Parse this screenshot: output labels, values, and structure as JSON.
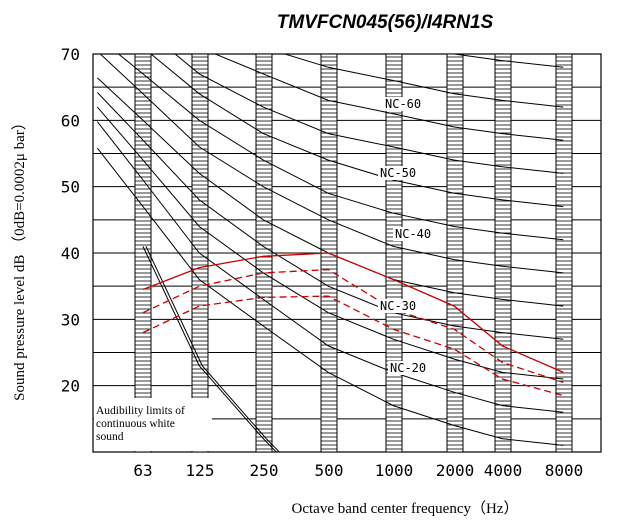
{
  "chart_data": {
    "type": "line",
    "title": "TMVFCN045(56)/I4RN1S",
    "xlabel": "Octave band center frequency（Hz）",
    "ylabel": "Sound pressure level dB （0dB=0.0002μ  bar）",
    "x_categories": [
      "63",
      "125",
      "250",
      "500",
      "1000",
      "2000",
      "4000",
      "8000"
    ],
    "y_ticks": [
      "20",
      "30",
      "40",
      "50",
      "60",
      "70"
    ],
    "ylim": [
      10,
      70
    ],
    "grid": true,
    "nc_labels": [
      "NC-60",
      "NC-50",
      "NC-40",
      "NC-30",
      "NC-20"
    ],
    "annotation": [
      "Audibility limits of",
      "continuous white",
      "sound"
    ],
    "series": [
      {
        "color": "#cc0000",
        "style": "solid",
        "points": [
          [
            63,
            34.5
          ],
          [
            125,
            37.8
          ],
          [
            250,
            39.5
          ],
          [
            500,
            40
          ],
          [
            1000,
            36
          ],
          [
            2000,
            32
          ],
          [
            4000,
            26
          ],
          [
            8000,
            22
          ]
        ]
      },
      {
        "color": "#cc0000",
        "style": "dashed",
        "points": [
          [
            63,
            31
          ],
          [
            125,
            35
          ],
          [
            250,
            37
          ],
          [
            500,
            37.5
          ],
          [
            1000,
            31.5
          ],
          [
            2000,
            28.5
          ],
          [
            4000,
            23.5
          ],
          [
            8000,
            20.5
          ]
        ]
      },
      {
        "color": "#cc0000",
        "style": "dashed",
        "points": [
          [
            63,
            28
          ],
          [
            125,
            32
          ],
          [
            250,
            33.3
          ],
          [
            500,
            33.5
          ],
          [
            1000,
            28.5
          ],
          [
            2000,
            25.5
          ],
          [
            4000,
            21
          ],
          [
            8000,
            18.5
          ]
        ]
      }
    ]
  }
}
